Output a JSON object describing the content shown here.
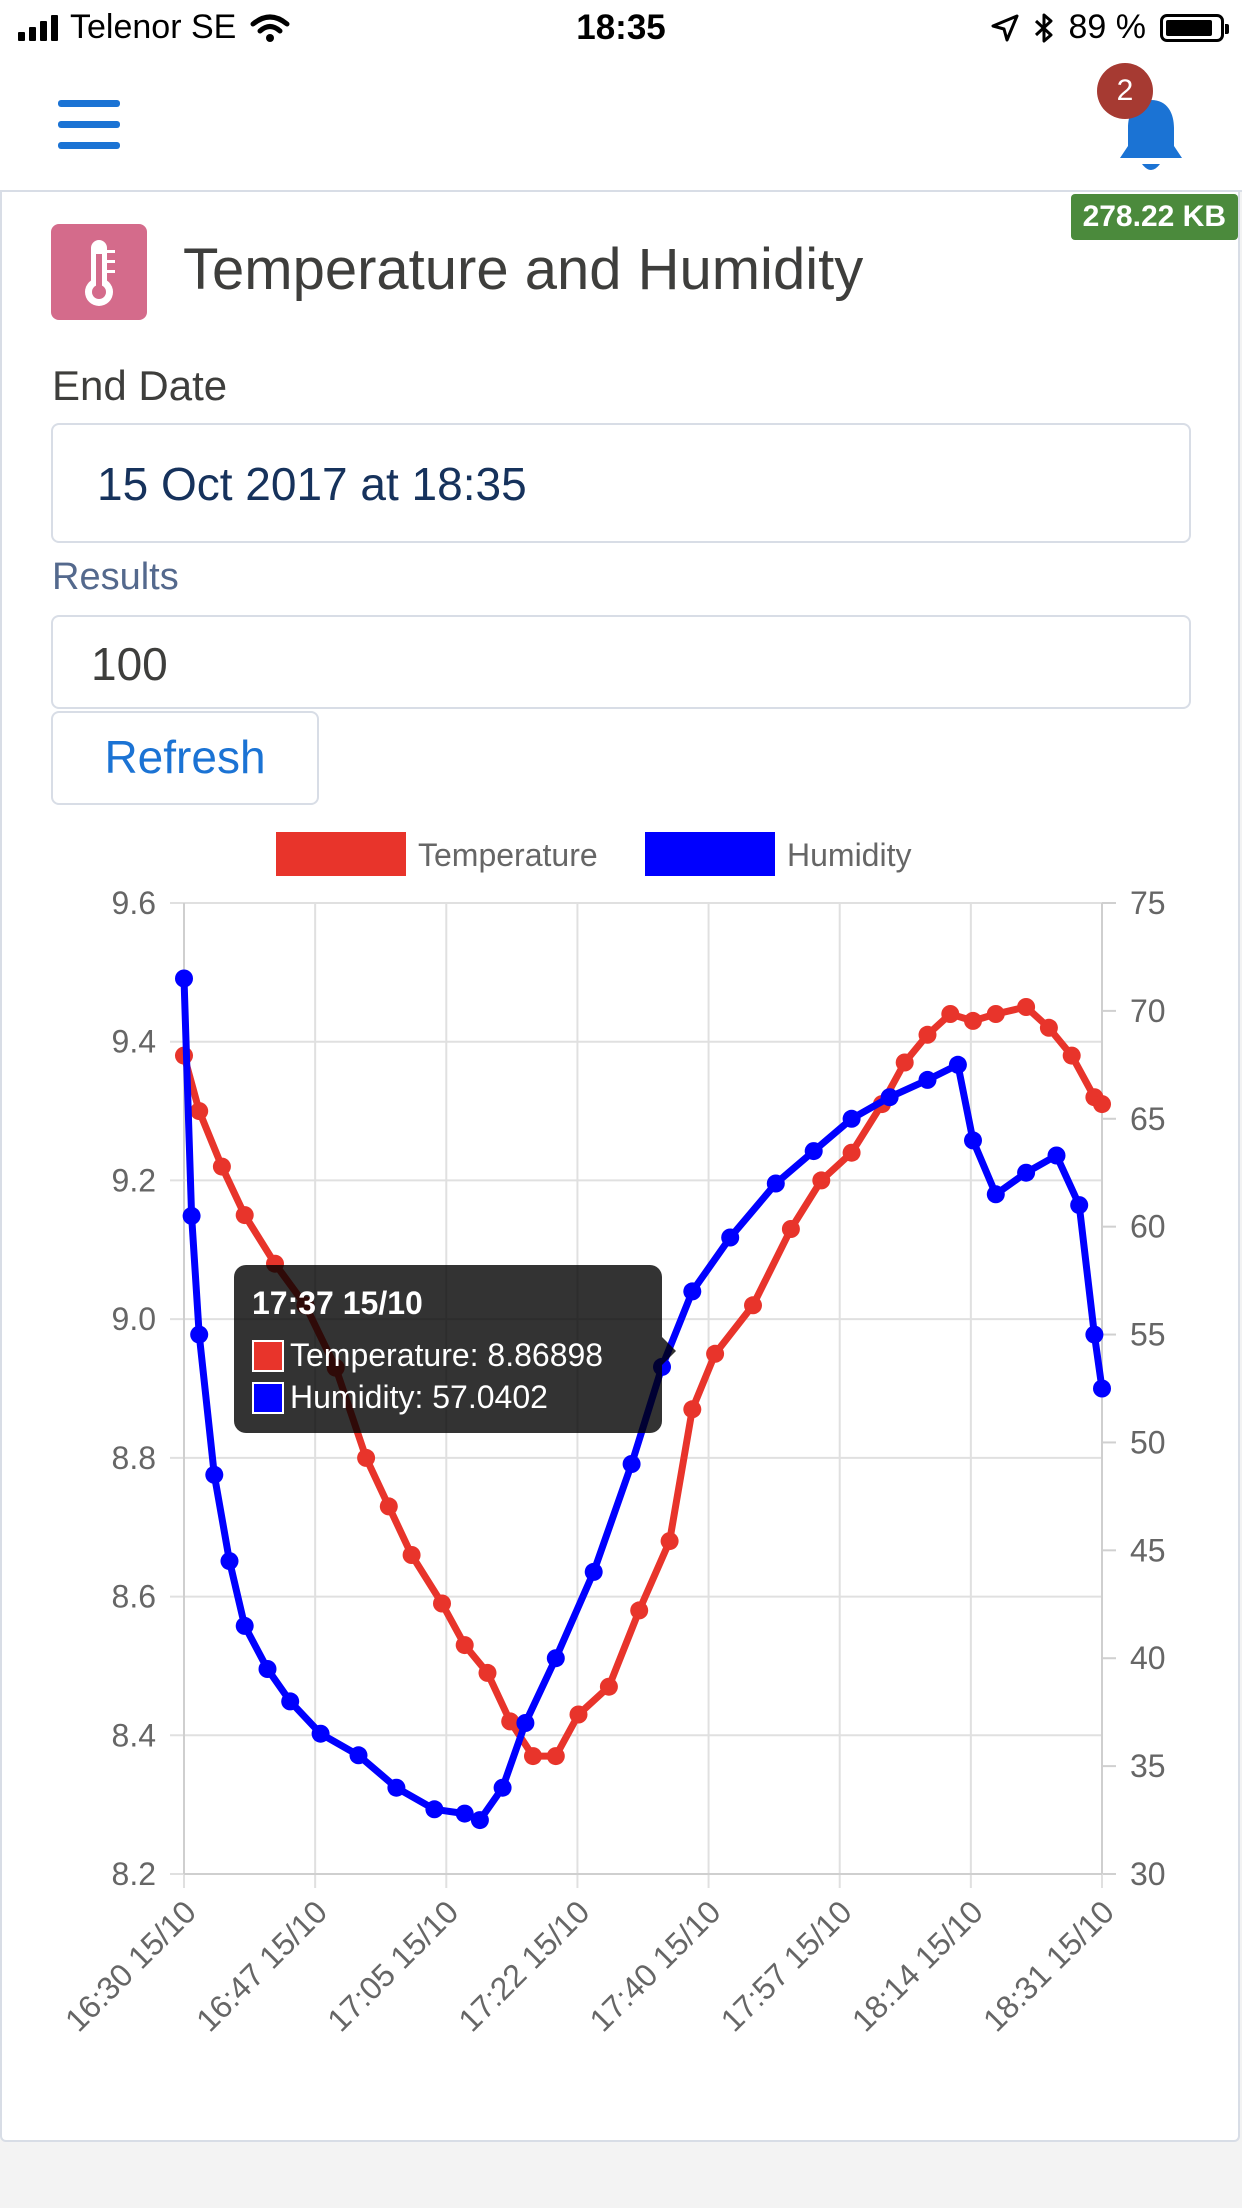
{
  "status_bar": {
    "carrier": "Telenor SE",
    "time": "18:35",
    "battery_text": "89 %",
    "battery_level": 0.89,
    "icons": [
      "signal-icon",
      "wifi-icon",
      "location-arrow-icon",
      "bluetooth-icon",
      "battery-icon"
    ]
  },
  "header": {
    "menu_icon": "hamburger-menu-icon",
    "notification_icon": "bell-icon",
    "notification_count": "2"
  },
  "card": {
    "size_badge": "278.22 KB",
    "icon": "thermometer-icon",
    "title": "Temperature and Humidity",
    "end_date_label": "End Date",
    "end_date_value": "15 Oct 2017 at 18:35",
    "results_label": "Results",
    "results_value": "100",
    "refresh_label": "Refresh"
  },
  "colors": {
    "accent": "#1b73d4",
    "temperature": "#e8342b",
    "humidity": "#0000ff",
    "title_icon_bg": "#d46b8b",
    "size_badge_bg": "#4b8a3c",
    "notif_badge_bg": "#a63a32"
  },
  "tooltip": {
    "title": "17:37 15/10",
    "rows": [
      "Temperature: 8.86898",
      "Humidity: 57.0402"
    ]
  },
  "chart_data": {
    "type": "line",
    "legend": [
      "Temperature",
      "Humidity"
    ],
    "legend_position": "top",
    "grid": true,
    "x_tick_labels": [
      "16:30 15/10",
      "16:47 15/10",
      "17:05 15/10",
      "17:22 15/10",
      "17:40 15/10",
      "17:57 15/10",
      "18:14 15/10",
      "18:31 15/10"
    ],
    "y_left": {
      "series": "Temperature",
      "min": 8.2,
      "max": 9.6,
      "ticks": [
        "9.6",
        "9.4",
        "9.2",
        "9.0",
        "8.8",
        "8.6",
        "8.4",
        "8.2"
      ]
    },
    "y_right": {
      "series": "Humidity",
      "min": 30,
      "max": 75,
      "ticks": [
        "75",
        "70",
        "65",
        "60",
        "55",
        "50",
        "45",
        "40",
        "35",
        "30"
      ]
    },
    "time_range": [
      "16:30",
      "18:31"
    ],
    "series": [
      {
        "name": "Temperature",
        "axis": "left",
        "points": [
          [
            "16:30",
            9.38
          ],
          [
            "16:32",
            9.3
          ],
          [
            "16:35",
            9.22
          ],
          [
            "16:38",
            9.15
          ],
          [
            "16:42",
            9.08
          ],
          [
            "16:46",
            9.02
          ],
          [
            "16:50",
            8.93
          ],
          [
            "16:54",
            8.8
          ],
          [
            "16:57",
            8.73
          ],
          [
            "17:00",
            8.66
          ],
          [
            "17:04",
            8.59
          ],
          [
            "17:07",
            8.53
          ],
          [
            "17:10",
            8.49
          ],
          [
            "17:13",
            8.42
          ],
          [
            "17:16",
            8.37
          ],
          [
            "17:19",
            8.37
          ],
          [
            "17:22",
            8.43
          ],
          [
            "17:26",
            8.47
          ],
          [
            "17:30",
            8.58
          ],
          [
            "17:34",
            8.68
          ],
          [
            "17:37",
            8.87
          ],
          [
            "17:40",
            8.95
          ],
          [
            "17:45",
            9.02
          ],
          [
            "17:50",
            9.13
          ],
          [
            "17:54",
            9.2
          ],
          [
            "17:58",
            9.24
          ],
          [
            "18:02",
            9.31
          ],
          [
            "18:05",
            9.37
          ],
          [
            "18:08",
            9.41
          ],
          [
            "18:11",
            9.44
          ],
          [
            "18:14",
            9.43
          ],
          [
            "18:17",
            9.44
          ],
          [
            "18:21",
            9.45
          ],
          [
            "18:24",
            9.42
          ],
          [
            "18:27",
            9.38
          ],
          [
            "18:30",
            9.32
          ],
          [
            "18:31",
            9.31
          ]
        ]
      },
      {
        "name": "Humidity",
        "axis": "right",
        "points": [
          [
            "16:30",
            71.5
          ],
          [
            "16:31",
            60.5
          ],
          [
            "16:32",
            55.0
          ],
          [
            "16:34",
            48.5
          ],
          [
            "16:36",
            44.5
          ],
          [
            "16:38",
            41.5
          ],
          [
            "16:41",
            39.5
          ],
          [
            "16:44",
            38.0
          ],
          [
            "16:48",
            36.5
          ],
          [
            "16:53",
            35.5
          ],
          [
            "16:58",
            34.0
          ],
          [
            "17:03",
            33.0
          ],
          [
            "17:07",
            32.8
          ],
          [
            "17:09",
            32.5
          ],
          [
            "17:12",
            34.0
          ],
          [
            "17:15",
            37.0
          ],
          [
            "17:19",
            40.0
          ],
          [
            "17:24",
            44.0
          ],
          [
            "17:29",
            49.0
          ],
          [
            "17:33",
            53.5
          ],
          [
            "17:37",
            57.0
          ],
          [
            "17:42",
            59.5
          ],
          [
            "17:48",
            62.0
          ],
          [
            "17:53",
            63.5
          ],
          [
            "17:58",
            65.0
          ],
          [
            "18:03",
            66.0
          ],
          [
            "18:08",
            66.8
          ],
          [
            "18:12",
            67.5
          ],
          [
            "18:14",
            64.0
          ],
          [
            "18:17",
            61.5
          ],
          [
            "18:21",
            62.5
          ],
          [
            "18:25",
            63.3
          ],
          [
            "18:28",
            61.0
          ],
          [
            "18:30",
            55.0
          ],
          [
            "18:31",
            52.5
          ]
        ]
      }
    ]
  }
}
